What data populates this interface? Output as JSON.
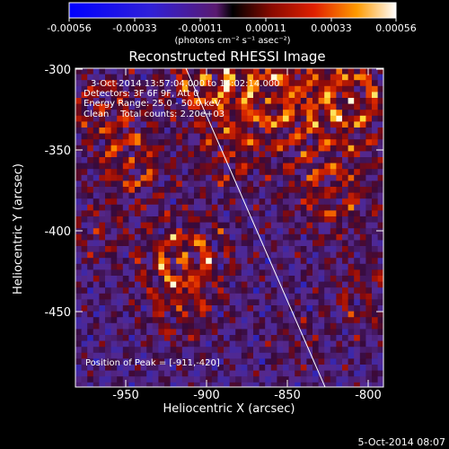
{
  "colorbar": {
    "tick_labels": [
      "-0.00056",
      "-0.00033",
      "-0.00011",
      "0.00011",
      "0.00033",
      "0.00056"
    ],
    "unit_label": "(photons cm⁻² s⁻¹ asec⁻²)"
  },
  "title": "Reconstructed RHESSI Image",
  "info": {
    "time_range": "3-Oct-2014 13:57:04.000 to 14:02:14.000",
    "detectors": "Detectors: 3F 6F 9F, Att 0",
    "energy_range": "Energy Range: 25.0 - 50.0 keV",
    "clean_counts": "Clean    Total counts: 2.20e+03"
  },
  "peak_label": "Position of Peak = [-911,-420]",
  "axes": {
    "xlabel": "Heliocentric X (arcsec)",
    "ylabel": "Heliocentric Y (arcsec)",
    "x_ticks": [
      "-950",
      "-900",
      "-850",
      "-800"
    ],
    "y_ticks": [
      "-300",
      "-350",
      "-400",
      "-450"
    ]
  },
  "footer_date": "5-Oct-2014 08:07",
  "image_extent": {
    "x": [
      -978,
      -788
    ],
    "y": [
      -494,
      -297
    ]
  },
  "peak": [
    -911,
    -420
  ]
}
